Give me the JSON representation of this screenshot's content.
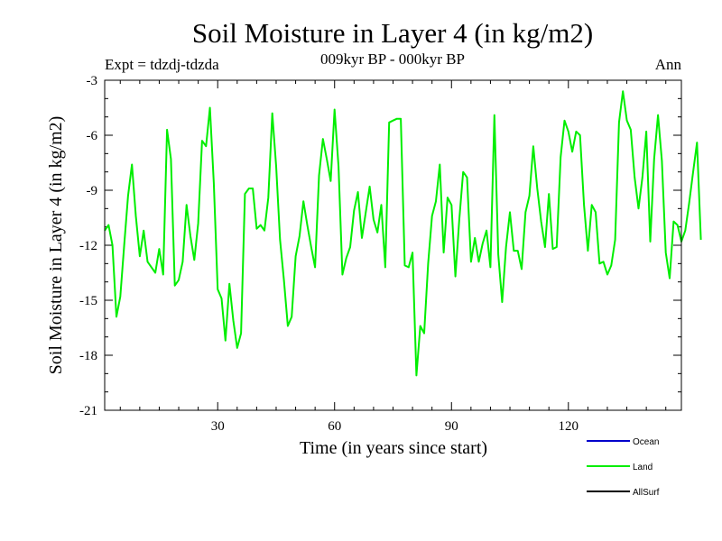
{
  "chart_data": {
    "type": "line",
    "title": "Soil Moisture in Layer 4 (in kg/m2)",
    "subtitle": "009kyr BP - 000kyr BP",
    "experiment": "Expt = tdzdj-tdzda",
    "season": "Ann",
    "xlabel": "Time (in years since start)",
    "ylabel": "Soil Moisture in Layer 4 (in kg/m2)",
    "xlim": [
      1,
      149
    ],
    "ylim": [
      -21,
      -3
    ],
    "xticks": [
      30,
      60,
      90,
      120
    ],
    "yticks": [
      -3,
      -6,
      -9,
      -12,
      -15,
      -18,
      -21
    ],
    "legend_position": "bottom-right",
    "series": [
      {
        "name": "Ocean",
        "color": "#0000cc",
        "values": []
      },
      {
        "name": "Land",
        "color": "#00ee00",
        "values": [
          -11.2,
          -10.9,
          -12,
          -15.9,
          -14.8,
          -12,
          -9.3,
          -7.6,
          -10.4,
          -12.6,
          -11.2,
          -12.9,
          -13.2,
          -13.5,
          -12.2,
          -13.6,
          -5.7,
          -7.3,
          -14.2,
          -13.9,
          -12.9,
          -9.8,
          -11.5,
          -12.8,
          -10.8,
          -6.3,
          -6.6,
          -4.5,
          -8.6,
          -14.4,
          -14.9,
          -17.2,
          -14.1,
          -16.1,
          -17.6,
          -16.8,
          -9.2,
          -8.9,
          -8.9,
          -11.1,
          -10.9,
          -11.2,
          -9.4,
          -4.8,
          -7.7,
          -11.7,
          -13.9,
          -16.4,
          -15.9,
          -12.6,
          -11.5,
          -9.6,
          -10.9,
          -12.1,
          -13.2,
          -8.2,
          -6.2,
          -7.3,
          -8.5,
          -4.6,
          -7.7,
          -13.6,
          -12.7,
          -12.1,
          -10.1,
          -9.1,
          -11.6,
          -10.2,
          -8.8,
          -10.6,
          -11.3,
          -9.8,
          -13.2,
          -5.3,
          -5.2,
          -5.1,
          -5.1,
          -13.1,
          -13.2,
          -12.4,
          -19.1,
          -16.4,
          -16.8,
          -13,
          -10.4,
          -9.6,
          -7.6,
          -12.4,
          -9.4,
          -9.8,
          -13.7,
          -10.6,
          -8,
          -8.3,
          -12.9,
          -11.6,
          -12.9,
          -11.9,
          -11.2,
          -13.2,
          -4.9,
          -12.5,
          -15.1,
          -12.1,
          -10.2,
          -12.3,
          -12.3,
          -13.3,
          -10.2,
          -9.3,
          -6.6,
          -8.9,
          -10.7,
          -12.1,
          -9.2,
          -12.2,
          -12.1,
          -7.2,
          -5.2,
          -5.8,
          -6.9,
          -5.8,
          -6,
          -9.8,
          -12.3,
          -9.8,
          -10.2,
          -13,
          -12.9,
          -13.6,
          -13.1,
          -11.7,
          -5.3,
          -3.6,
          -5.2,
          -5.7,
          -8.3,
          -10,
          -8.3,
          -5.8,
          -11.8,
          -7.3,
          -4.9,
          -7.4,
          -12.4,
          -13.8,
          -10.7,
          -10.9,
          -11.8,
          -11.2,
          -9.7,
          -8,
          -6.4,
          -11.7
        ]
      },
      {
        "name": "AllSurf",
        "color": "#000000",
        "values": []
      }
    ]
  }
}
